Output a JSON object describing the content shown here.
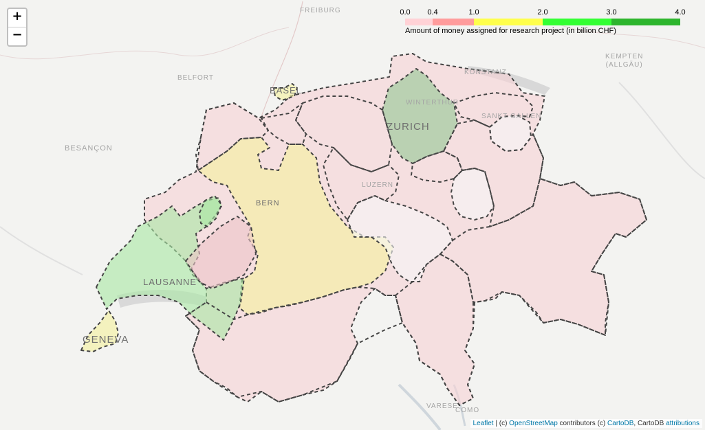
{
  "zoom": {
    "in_label": "+",
    "out_label": "−"
  },
  "legend": {
    "ticks": [
      "0.0",
      "0.4",
      "1.0",
      "2.0",
      "3.0",
      "4.0"
    ],
    "colors": [
      "#ffd2d6",
      "#ff9c9c",
      "#ffff4c",
      "#33ff33",
      "#2db52d"
    ],
    "caption": "Amount of money assigned for research project (in billion CHF)"
  },
  "places": {
    "freiburg": "FREIBURG",
    "kempten": "KEMPTEN\n(ALLGÄU)",
    "belfort": "BELFORT",
    "besancon": "BESANÇON",
    "konstanz": "KONSTANZ",
    "winterthur": "WINTERTHUR",
    "sankt_gallen": "SANKT GALLEN",
    "luzern": "LUZERN",
    "varese": "VARESE",
    "como": "COMO"
  },
  "cities": {
    "basel": "BASEL",
    "zurich": "ZURICH",
    "bern": "BERN",
    "lausanne": "LAUSANNE",
    "geneva": "GENEVA"
  },
  "attribution": {
    "leaflet": "Leaflet",
    "sep1": " | (c) ",
    "osm": "OpenStreetMap",
    "mid": " contributors (c) ",
    "cartodb": "CartoDB",
    "mid2": ", CartoDB ",
    "attributions": "attributions"
  },
  "colors": {
    "pink": "#f6d2d6",
    "yellow": "#f5f29c",
    "green": "#a8e8a4",
    "zurich_green": "#93c893",
    "white": "#f6f6f6",
    "border": "#444444"
  }
}
